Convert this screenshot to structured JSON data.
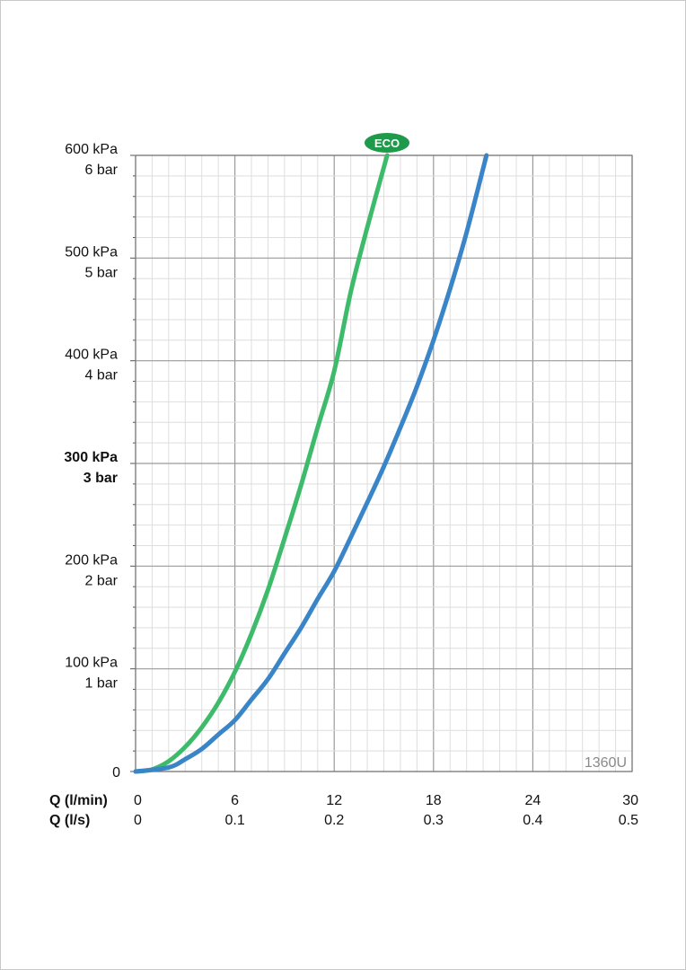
{
  "chart_data": {
    "type": "line",
    "x_label_rows": [
      {
        "label": "Q (l/min)",
        "ticks": [
          "0",
          "6",
          "12",
          "18",
          "24",
          "30"
        ]
      },
      {
        "label": "Q (l/s)",
        "ticks": [
          "0",
          "0.1",
          "0.2",
          "0.3",
          "0.4",
          "0.5"
        ]
      }
    ],
    "y_ticks": [
      {
        "value": 0,
        "kpa": "0",
        "bar": "",
        "bold": false
      },
      {
        "value": 100,
        "kpa": "100 kPa",
        "bar": "1 bar",
        "bold": false
      },
      {
        "value": 200,
        "kpa": "200 kPa",
        "bar": "2 bar",
        "bold": false
      },
      {
        "value": 300,
        "kpa": "300 kPa",
        "bar": "3 bar",
        "bold": true
      },
      {
        "value": 400,
        "kpa": "400 kPa",
        "bar": "4 bar",
        "bold": false
      },
      {
        "value": 500,
        "kpa": "500 kPa",
        "bar": "5 bar",
        "bold": false
      },
      {
        "value": 600,
        "kpa": "600 kPa",
        "bar": "6 bar",
        "bold": false
      }
    ],
    "xlim": [
      0,
      30
    ],
    "ylim": [
      0,
      600
    ],
    "grid": true,
    "series": [
      {
        "name": "ECO",
        "color": "#3dbb6b",
        "x": [
          0,
          1,
          2,
          3,
          4,
          5,
          6,
          7,
          8,
          9,
          10,
          11,
          12,
          13,
          14,
          15.2
        ],
        "y": [
          0,
          2,
          10,
          24,
          43,
          67,
          97,
          134,
          177,
          227,
          279,
          335,
          390,
          467,
          530,
          600
        ]
      },
      {
        "color": "#3a85c8",
        "x": [
          0,
          2,
          3,
          4,
          5,
          6,
          7,
          8,
          9,
          10,
          11,
          12,
          13,
          14,
          15,
          16,
          17,
          18,
          19,
          20,
          21.2
        ],
        "y": [
          0,
          4,
          12,
          22,
          36,
          50,
          70,
          90,
          115,
          140,
          168,
          195,
          228,
          262,
          297,
          335,
          375,
          420,
          470,
          525,
          600
        ]
      }
    ],
    "badge": {
      "text": "ECO",
      "color": "#1f9a4b"
    },
    "model_label": "1360U"
  }
}
